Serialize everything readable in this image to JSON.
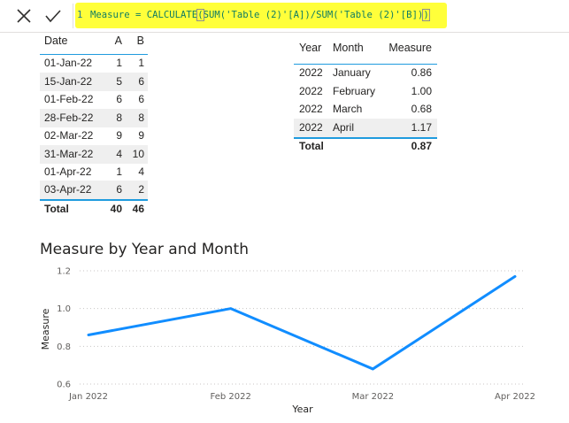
{
  "formula_bar": {
    "cancel_icon": "close-icon",
    "commit_icon": "check-icon",
    "line_number": "1",
    "pre": "Measure = CALCULATE",
    "open_paren": "(",
    "mid": "SUM('Table (2)'[A])/SUM('Table (2)'[B])",
    "close_paren": ")"
  },
  "left_table": {
    "headers": {
      "date": "Date",
      "a": "A",
      "b": "B"
    },
    "rows": [
      {
        "date": "01-Jan-22",
        "a": "1",
        "b": "1"
      },
      {
        "date": "15-Jan-22",
        "a": "5",
        "b": "6"
      },
      {
        "date": "01-Feb-22",
        "a": "6",
        "b": "6"
      },
      {
        "date": "28-Feb-22",
        "a": "8",
        "b": "8"
      },
      {
        "date": "02-Mar-22",
        "a": "9",
        "b": "9"
      },
      {
        "date": "31-Mar-22",
        "a": "4",
        "b": "10"
      },
      {
        "date": "01-Apr-22",
        "a": "1",
        "b": "4"
      },
      {
        "date": "03-Apr-22",
        "a": "6",
        "b": "2"
      }
    ],
    "total": {
      "label": "Total",
      "a": "40",
      "b": "46"
    }
  },
  "right_table": {
    "headers": {
      "year": "Year",
      "month": "Month",
      "measure": "Measure"
    },
    "rows": [
      {
        "year": "2022",
        "month": "January",
        "measure": "0.86"
      },
      {
        "year": "2022",
        "month": "February",
        "measure": "1.00"
      },
      {
        "year": "2022",
        "month": "March",
        "measure": "0.68"
      },
      {
        "year": "2022",
        "month": "April",
        "measure": "1.17"
      }
    ],
    "total": {
      "label": "Total",
      "measure": "0.87"
    }
  },
  "colors": {
    "formula_highlight": "#ffff3a",
    "accent": "#1f9bde",
    "row_band": "#efefef",
    "line": "#118dff"
  },
  "chart_data": {
    "type": "line",
    "title": "Measure by Year and Month",
    "xlabel": "Year",
    "ylabel": "Measure",
    "categories": [
      "Jan 2022",
      "Feb 2022",
      "Mar 2022",
      "Apr 2022"
    ],
    "series": [
      {
        "values": [
          0.86,
          1.0,
          0.68,
          1.17
        ]
      }
    ],
    "ylim": [
      0.6,
      1.2
    ],
    "yticks": [
      0.6,
      0.8,
      1.0,
      1.2
    ],
    "ytick_labels": [
      "0.6",
      "0.8",
      "1.0",
      "1.2"
    ],
    "grid": true,
    "legend": "none"
  }
}
